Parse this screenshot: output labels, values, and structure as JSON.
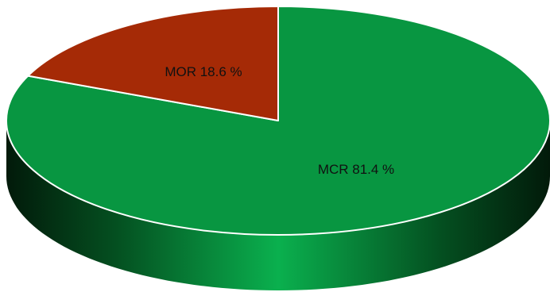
{
  "chart_data": {
    "type": "pie",
    "style": "3d",
    "slices": [
      {
        "label": "MCR",
        "value": 81.4,
        "unit": "%",
        "color": "#089641"
      },
      {
        "label": "MOR",
        "value": 18.6,
        "unit": "%",
        "color": "#a52a06"
      }
    ],
    "labels": [
      "MCR 81.4 %",
      "MOR 18.6 %"
    ],
    "title": "",
    "legend": "none"
  }
}
